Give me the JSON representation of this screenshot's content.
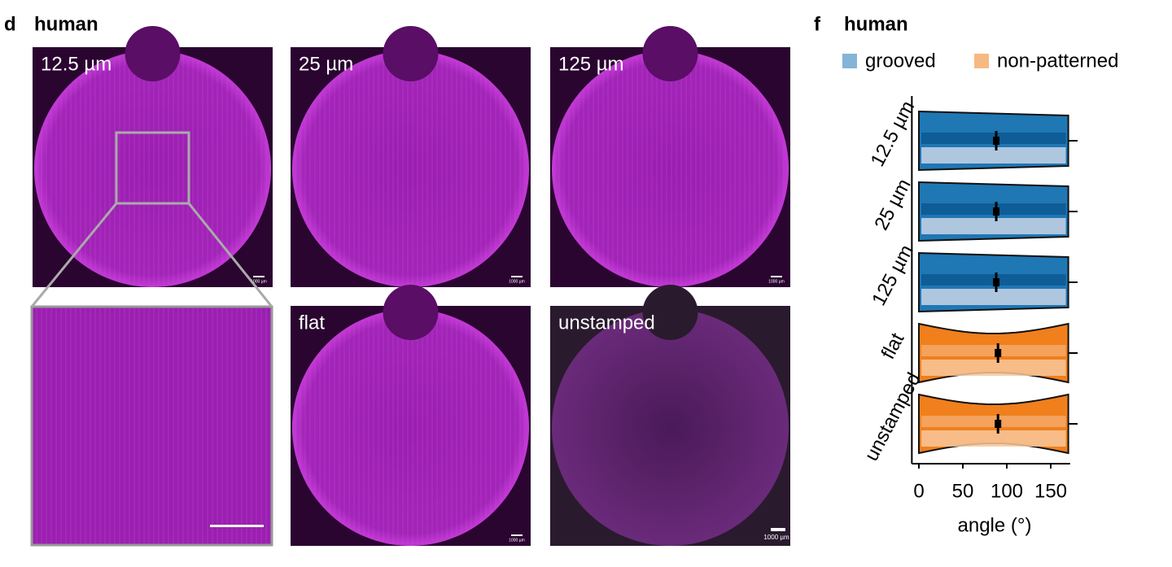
{
  "panel_d": {
    "letter": "d",
    "title": "human",
    "images": [
      {
        "label": "12.5 µm",
        "scale_bar": "1000 µm"
      },
      {
        "label": "25 µm",
        "scale_bar": "1000 µm"
      },
      {
        "label": "125 µm",
        "scale_bar": "1000 µm"
      },
      {
        "label": "flat",
        "scale_bar": "1000 µm"
      },
      {
        "label": "unstamped",
        "scale_bar": "1000 µm"
      }
    ]
  },
  "panel_f": {
    "letter": "f",
    "title": "human"
  },
  "chart_data": {
    "type": "violin",
    "x_label": "angle (°)",
    "categories": [
      "12.5 µm",
      "25 µm",
      "125 µm",
      "flat",
      "unstamped"
    ],
    "series": [
      {
        "name": "grooved",
        "color": "#1f77b4",
        "values": [
          88,
          88,
          88,
          null,
          null
        ],
        "min": [
          0,
          0,
          0,
          null,
          null
        ],
        "max": [
          170,
          170,
          170,
          null,
          null
        ]
      },
      {
        "name": "non-patterned",
        "color": "#f07f1c",
        "values": [
          null,
          null,
          null,
          90,
          90
        ],
        "min": [
          null,
          null,
          null,
          0,
          0
        ],
        "max": [
          null,
          null,
          null,
          170,
          170
        ]
      }
    ],
    "xlim": [
      -8,
      172
    ],
    "xticks": [
      0,
      50,
      100,
      150
    ]
  }
}
